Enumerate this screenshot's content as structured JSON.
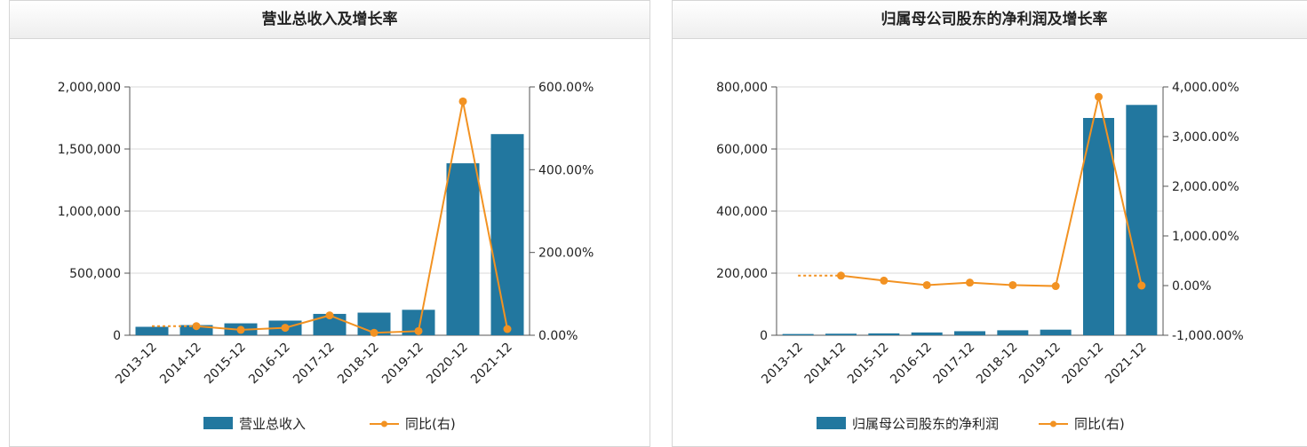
{
  "colors": {
    "bar": "#22779f",
    "line": "#f29222",
    "grid": "#d9d9d9",
    "axis": "#555555"
  },
  "chart_data": [
    {
      "type": "bar",
      "title": "营业总收入及增长率",
      "categories": [
        "2013-12",
        "2014-12",
        "2015-12",
        "2016-12",
        "2017-12",
        "2018-12",
        "2019-12",
        "2020-12",
        "2021-12"
      ],
      "y_ticks": [
        "0",
        "500,000",
        "1,000,000",
        "1,500,000",
        "2,000,000"
      ],
      "ylim": [
        0,
        2000000
      ],
      "y2_ticks": [
        "0.00%",
        "200.00%",
        "400.00%",
        "600.00%"
      ],
      "y2lim": [
        0,
        600
      ],
      "grid": true,
      "legend_position": "bottom",
      "series": [
        {
          "name": "营业总收入",
          "type": "bar",
          "axis": "left",
          "values": [
            68000,
            82000,
            96000,
            118000,
            172000,
            182000,
            205000,
            1385000,
            1620000
          ]
        },
        {
          "name": "同比(右)",
          "type": "line",
          "axis": "right",
          "values": [
            null,
            22,
            13,
            18,
            48,
            6,
            10,
            565,
            15
          ]
        }
      ]
    },
    {
      "type": "bar",
      "title": "归属母公司股东的净利润及增长率",
      "categories": [
        "2013-12",
        "2014-12",
        "2015-12",
        "2016-12",
        "2017-12",
        "2018-12",
        "2019-12",
        "2020-12",
        "2021-12"
      ],
      "y_ticks": [
        "0",
        "200,000",
        "400,000",
        "600,000",
        "800,000"
      ],
      "ylim": [
        0,
        800000
      ],
      "y2_ticks": [
        "-1,000.00%",
        "0.00%",
        "1,000.00%",
        "2,000.00%",
        "3,000.00%",
        "4,000.00%"
      ],
      "y2lim": [
        -1000,
        4000
      ],
      "grid": true,
      "legend_position": "bottom",
      "series": [
        {
          "name": "归属母公司股东的净利润",
          "type": "bar",
          "axis": "left",
          "values": [
            4000,
            5000,
            6000,
            9000,
            13000,
            16000,
            18000,
            700000,
            742000
          ]
        },
        {
          "name": "同比(右)",
          "type": "line",
          "axis": "right",
          "values": [
            null,
            200,
            100,
            10,
            60,
            10,
            -10,
            3800,
            0
          ]
        }
      ]
    }
  ]
}
